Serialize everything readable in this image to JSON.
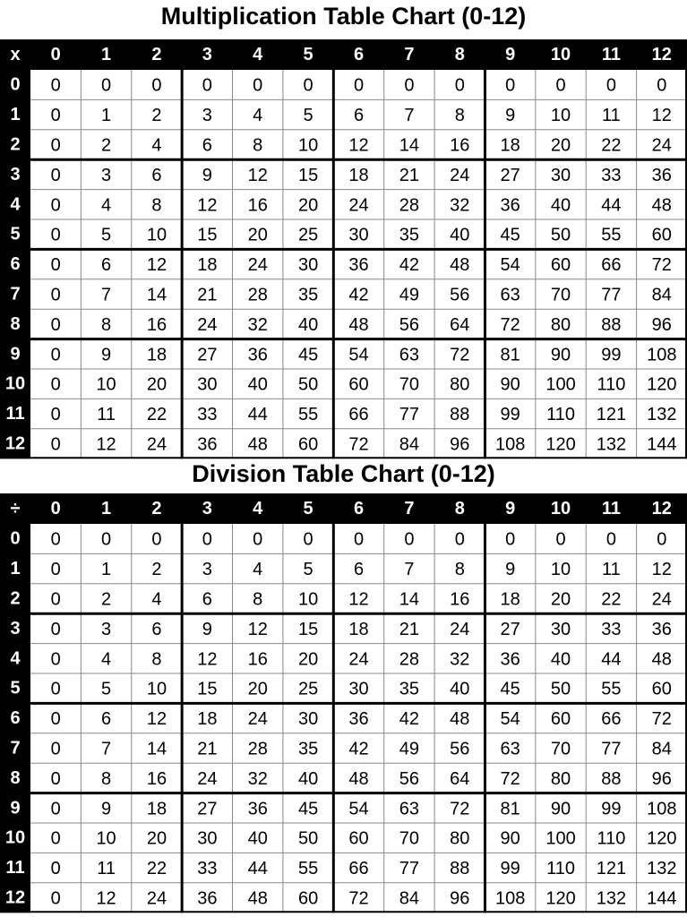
{
  "multiplication": {
    "title": "Multiplication Table Chart (0-12)",
    "corner": "x",
    "columns": [
      0,
      1,
      2,
      3,
      4,
      5,
      6,
      7,
      8,
      9,
      10,
      11,
      12
    ],
    "row_labels": [
      0,
      1,
      2,
      3,
      4,
      5,
      6,
      7,
      8,
      9,
      10,
      11,
      12
    ],
    "cells": [
      [
        0,
        0,
        0,
        0,
        0,
        0,
        0,
        0,
        0,
        0,
        0,
        0,
        0
      ],
      [
        0,
        1,
        2,
        3,
        4,
        5,
        6,
        7,
        8,
        9,
        10,
        11,
        12
      ],
      [
        0,
        2,
        4,
        6,
        8,
        10,
        12,
        14,
        16,
        18,
        20,
        22,
        24
      ],
      [
        0,
        3,
        6,
        9,
        12,
        15,
        18,
        21,
        24,
        27,
        30,
        33,
        36
      ],
      [
        0,
        4,
        8,
        12,
        16,
        20,
        24,
        28,
        32,
        36,
        40,
        44,
        48
      ],
      [
        0,
        5,
        10,
        15,
        20,
        25,
        30,
        35,
        40,
        45,
        50,
        55,
        60
      ],
      [
        0,
        6,
        12,
        18,
        24,
        30,
        36,
        42,
        48,
        54,
        60,
        66,
        72
      ],
      [
        0,
        7,
        14,
        21,
        28,
        35,
        42,
        49,
        56,
        63,
        70,
        77,
        84
      ],
      [
        0,
        8,
        16,
        24,
        32,
        40,
        48,
        56,
        64,
        72,
        80,
        88,
        96
      ],
      [
        0,
        9,
        18,
        27,
        36,
        45,
        54,
        63,
        72,
        81,
        90,
        99,
        108
      ],
      [
        0,
        10,
        20,
        30,
        40,
        50,
        60,
        70,
        80,
        90,
        100,
        110,
        120
      ],
      [
        0,
        11,
        22,
        33,
        44,
        55,
        66,
        77,
        88,
        99,
        110,
        121,
        132
      ],
      [
        0,
        12,
        24,
        36,
        48,
        60,
        72,
        84,
        96,
        108,
        120,
        132,
        144
      ]
    ]
  },
  "division": {
    "title": "Division Table Chart (0-12)",
    "corner": "÷",
    "columns": [
      0,
      1,
      2,
      3,
      4,
      5,
      6,
      7,
      8,
      9,
      10,
      11,
      12
    ],
    "row_labels": [
      0,
      1,
      2,
      3,
      4,
      5,
      6,
      7,
      8,
      9,
      10,
      11,
      12
    ],
    "cells": [
      [
        0,
        0,
        0,
        0,
        0,
        0,
        0,
        0,
        0,
        0,
        0,
        0,
        0
      ],
      [
        0,
        1,
        2,
        3,
        4,
        5,
        6,
        7,
        8,
        9,
        10,
        11,
        12
      ],
      [
        0,
        2,
        4,
        6,
        8,
        10,
        12,
        14,
        16,
        18,
        20,
        22,
        24
      ],
      [
        0,
        3,
        6,
        9,
        12,
        15,
        18,
        21,
        24,
        27,
        30,
        33,
        36
      ],
      [
        0,
        4,
        8,
        12,
        16,
        20,
        24,
        28,
        32,
        36,
        40,
        44,
        48
      ],
      [
        0,
        5,
        10,
        15,
        20,
        25,
        30,
        35,
        40,
        45,
        50,
        55,
        60
      ],
      [
        0,
        6,
        12,
        18,
        24,
        30,
        36,
        42,
        48,
        54,
        60,
        66,
        72
      ],
      [
        0,
        7,
        14,
        21,
        28,
        35,
        42,
        49,
        56,
        63,
        70,
        77,
        84
      ],
      [
        0,
        8,
        16,
        24,
        32,
        40,
        48,
        56,
        64,
        72,
        80,
        88,
        96
      ],
      [
        0,
        9,
        18,
        27,
        36,
        45,
        54,
        63,
        72,
        81,
        90,
        99,
        108
      ],
      [
        0,
        10,
        20,
        30,
        40,
        50,
        60,
        70,
        80,
        90,
        100,
        110,
        120
      ],
      [
        0,
        11,
        22,
        33,
        44,
        55,
        66,
        77,
        88,
        99,
        110,
        121,
        132
      ],
      [
        0,
        12,
        24,
        36,
        48,
        60,
        72,
        84,
        96,
        108,
        120,
        132,
        144
      ]
    ]
  }
}
